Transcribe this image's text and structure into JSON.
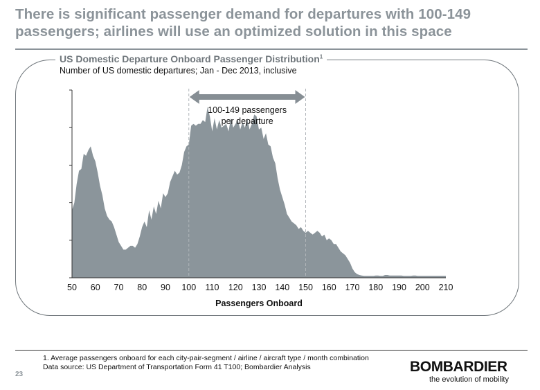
{
  "slide": {
    "headline": "There is significant passenger demand for departures with 100-149 passengers; airlines will use an optimized solution in this space",
    "panel_title": "US Domestic Departure Onboard Passenger Distribution",
    "panel_title_note": "1",
    "panel_subtitle": "Number of US domestic departures; Jan - Dec 2013, inclusive",
    "footnote": "1. Average passengers onboard for each city-pair-segment / airline / aircraft type / month combination",
    "source": "Data source: US Department of Transportation Form 41 T100; Bombardier Analysis",
    "page_number": "23",
    "brand": "BOMBARDIER",
    "tagline": "the evolution of mobility"
  },
  "colors": {
    "area": "#8b959b",
    "accent": "#8b9399",
    "axis": "#333333"
  },
  "chart_data": {
    "type": "area",
    "title": "US Domestic Departure Onboard Passenger Distribution",
    "xlabel": "Passengers Onboard",
    "ylabel": "",
    "xlim": [
      50,
      210
    ],
    "ylim": [
      0,
      100
    ],
    "xticks": [
      50,
      60,
      70,
      80,
      90,
      100,
      110,
      120,
      130,
      140,
      150,
      160,
      170,
      180,
      190,
      200,
      210
    ],
    "y_tick_count": 5,
    "y_tick_labels_shown": false,
    "annotation": {
      "text_line1": "100-149 passengers",
      "text_line2": "per departure",
      "x_start": 100,
      "x_end": 150
    },
    "series": [
      {
        "x": [
          50,
          51,
          52,
          53,
          54,
          55,
          56,
          57,
          58,
          59,
          60,
          61,
          62,
          63,
          64,
          65,
          66,
          67,
          68,
          69,
          70,
          71,
          72,
          73,
          74,
          75,
          76,
          77,
          78,
          79,
          80,
          81,
          82,
          83,
          84,
          85,
          86,
          87,
          88,
          89,
          90,
          91,
          92,
          93,
          94,
          95,
          96,
          97,
          98,
          99,
          100,
          101,
          102,
          103,
          104,
          105,
          106,
          107,
          108,
          109,
          110,
          111,
          112,
          113,
          114,
          115,
          116,
          117,
          118,
          119,
          120,
          121,
          122,
          123,
          124,
          125,
          126,
          127,
          128,
          129,
          130,
          131,
          132,
          133,
          134,
          135,
          136,
          137,
          138,
          139,
          140,
          141,
          142,
          143,
          144,
          145,
          146,
          147,
          148,
          149,
          150,
          151,
          152,
          153,
          154,
          155,
          156,
          157,
          158,
          159,
          160,
          161,
          162,
          163,
          164,
          165,
          166,
          167,
          168,
          169,
          170,
          171,
          172,
          173,
          174,
          175,
          176,
          177,
          178,
          179,
          180,
          181,
          182,
          183,
          184,
          185,
          186,
          187,
          188,
          189,
          190,
          191,
          192,
          193,
          194,
          195,
          196,
          197,
          198,
          199,
          200,
          201,
          202,
          203,
          204,
          205,
          206,
          207,
          208,
          209,
          210
        ],
        "values": [
          36,
          40,
          50,
          57,
          58,
          66,
          65,
          68,
          70,
          65,
          62,
          56,
          49,
          44,
          37,
          33,
          31,
          30,
          27,
          23,
          19,
          17,
          15,
          15,
          16,
          17,
          17,
          16,
          18,
          22,
          27,
          30,
          27,
          36,
          31,
          38,
          34,
          41,
          37,
          45,
          43,
          45,
          51,
          54,
          57,
          55,
          56,
          60,
          67,
          70,
          71,
          81,
          82,
          81,
          82,
          82,
          84,
          83,
          91,
          86,
          78,
          85,
          79,
          84,
          80,
          81,
          82,
          78,
          85,
          80,
          82,
          84,
          79,
          83,
          80,
          85,
          79,
          82,
          87,
          86,
          79,
          80,
          74,
          77,
          71,
          70,
          64,
          61,
          53,
          47,
          43,
          39,
          34,
          32,
          30,
          29,
          28,
          26,
          27,
          25,
          24,
          25,
          24,
          23,
          24,
          25,
          24,
          22,
          23,
          20,
          21,
          20,
          18,
          18,
          16,
          14,
          13,
          12,
          10,
          8,
          5,
          3,
          2,
          1.5,
          1.2,
          1,
          1,
          1,
          1,
          1,
          1.2,
          1.2,
          1,
          1,
          1.5,
          1.5,
          1.2,
          1.2,
          1.2,
          1.2,
          1.2,
          1.2,
          1,
          1,
          1,
          1,
          1.2,
          1.2,
          1,
          1,
          1,
          1,
          1,
          1,
          1,
          1,
          1,
          1,
          1,
          1,
          1
        ]
      }
    ]
  }
}
